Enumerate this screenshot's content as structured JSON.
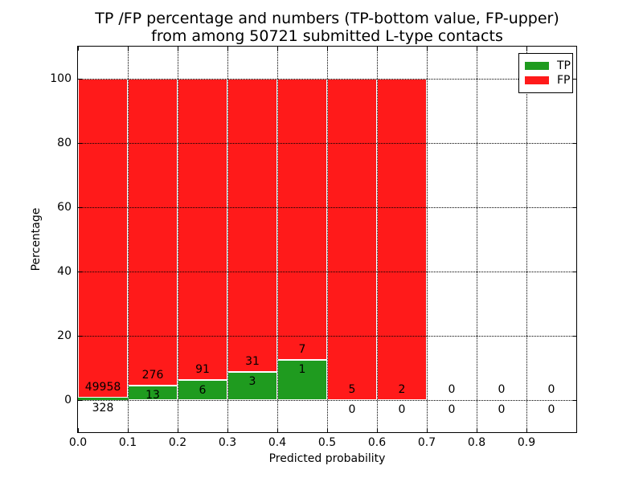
{
  "figure": {
    "background": "#ffffff"
  },
  "chart_data": {
    "type": "bar",
    "stacked": true,
    "normalized_to_percent": true,
    "title": "TP /FP percentage and numbers (TP-bottom value, FP-upper)\nfrom among 50721 submitted L-type contacts",
    "title_line1": "TP /FP percentage and numbers (TP-bottom value, FP-upper)",
    "title_line2": "from among 50721 submitted L-type contacts",
    "xlabel": "Predicted probability",
    "ylabel": "Percentage",
    "total_submitted": 50721,
    "xlim": [
      0.0,
      1.0
    ],
    "ylim": [
      -10,
      110
    ],
    "bin_edges": [
      0.0,
      0.1,
      0.2,
      0.3,
      0.4,
      0.5,
      0.6,
      0.7,
      0.8,
      0.9,
      1.0
    ],
    "series": [
      {
        "name": "TP",
        "color": "#1f9b1f",
        "counts": [
          328,
          13,
          6,
          3,
          1,
          0,
          0,
          0,
          0,
          0
        ]
      },
      {
        "name": "FP",
        "color": "#ff1a1a",
        "counts": [
          49958,
          276,
          91,
          31,
          7,
          5,
          2,
          0,
          0,
          0
        ]
      }
    ],
    "bar_edge_color": "#ffffff",
    "grid": {
      "visible": true,
      "style": "dotted",
      "color": "#000000"
    },
    "legend": {
      "position": "upper-right"
    },
    "xticks": {
      "values": [
        0.0,
        0.1,
        0.2,
        0.3,
        0.4,
        0.5,
        0.6,
        0.7,
        0.8,
        0.9
      ],
      "labels": [
        "0.0",
        "0.1",
        "0.2",
        "0.3",
        "0.4",
        "0.5",
        "0.6",
        "0.7",
        "0.8",
        "0.9"
      ]
    },
    "yticks": {
      "values": [
        0,
        20,
        40,
        60,
        80,
        100
      ],
      "labels": [
        "0",
        "20",
        "40",
        "60",
        "80",
        "100"
      ]
    }
  }
}
